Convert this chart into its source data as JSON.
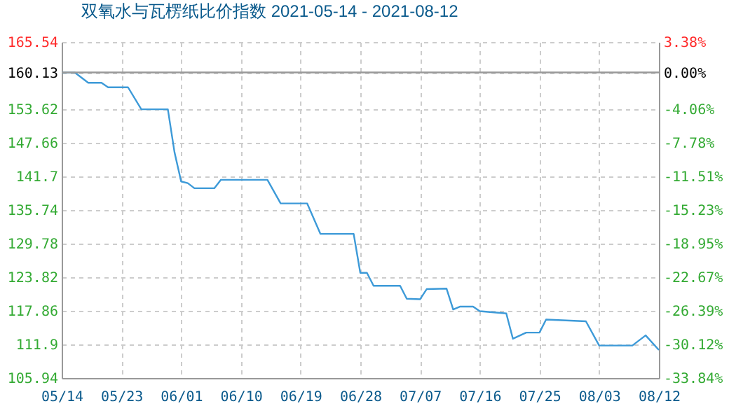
{
  "chart_data": {
    "type": "line",
    "title": "双氧水与瓦楞纸比价指数 2021-05-14 - 2021-08-12",
    "x": [
      "2021-05-14",
      "2021-05-16",
      "2021-05-18",
      "2021-05-20",
      "2021-05-21",
      "2021-05-24",
      "2021-05-26",
      "2021-05-30",
      "2021-05-31",
      "2021-06-01",
      "2021-06-02",
      "2021-06-03",
      "2021-06-06",
      "2021-06-07",
      "2021-06-14",
      "2021-06-16",
      "2021-06-20",
      "2021-06-22",
      "2021-06-27",
      "2021-06-28",
      "2021-06-29",
      "2021-06-30",
      "2021-07-04",
      "2021-07-05",
      "2021-07-07",
      "2021-07-08",
      "2021-07-11",
      "2021-07-12",
      "2021-07-13",
      "2021-07-15",
      "2021-07-16",
      "2021-07-20",
      "2021-07-21",
      "2021-07-23",
      "2021-07-25",
      "2021-07-26",
      "2021-08-01",
      "2021-08-03",
      "2021-08-08",
      "2021-08-10",
      "2021-08-12"
    ],
    "series": [
      {
        "color": "#3d9ad8",
        "values": [
          160.1,
          160.1,
          158.3,
          158.3,
          157.5,
          157.5,
          153.6,
          153.6,
          146.0,
          140.8,
          140.5,
          139.6,
          139.6,
          141.1,
          141.1,
          136.9,
          136.9,
          131.5,
          131.5,
          124.6,
          124.6,
          122.3,
          122.3,
          120.0,
          119.9,
          121.7,
          121.8,
          118.1,
          118.6,
          118.6,
          117.8,
          117.4,
          112.9,
          114.0,
          114.0,
          116.3,
          116.0,
          111.7,
          111.7,
          113.5,
          110.9
        ]
      }
    ],
    "xlim": [
      "2021-05-14",
      "2021-08-12"
    ],
    "xticks": [
      {
        "value": "2021-05-14",
        "label": "05/14"
      },
      {
        "value": "2021-05-23",
        "label": "05/23"
      },
      {
        "value": "2021-06-01",
        "label": "06/01"
      },
      {
        "value": "2021-06-10",
        "label": "06/10"
      },
      {
        "value": "2021-06-19",
        "label": "06/19"
      },
      {
        "value": "2021-06-28",
        "label": "06/28"
      },
      {
        "value": "2021-07-07",
        "label": "07/07"
      },
      {
        "value": "2021-07-16",
        "label": "07/16"
      },
      {
        "value": "2021-07-25",
        "label": "07/25"
      },
      {
        "value": "2021-08-03",
        "label": "08/03"
      },
      {
        "value": "2021-08-12",
        "label": "08/12"
      }
    ],
    "ylim": [
      105.94,
      165.54
    ],
    "yticks": [
      105.94,
      111.9,
      117.86,
      123.82,
      129.78,
      135.74,
      141.7,
      147.66,
      153.62,
      160.13,
      165.54
    ],
    "y2lim": [
      -33.84,
      3.38
    ],
    "y2ticks": [
      {
        "value": -33.84,
        "label": "-33.84%"
      },
      {
        "value": -30.12,
        "label": "-30.12%"
      },
      {
        "value": -26.39,
        "label": "-26.39%"
      },
      {
        "value": -22.67,
        "label": "-22.67%"
      },
      {
        "value": -18.95,
        "label": "-18.95%"
      },
      {
        "value": -15.23,
        "label": "-15.23%"
      },
      {
        "value": -11.51,
        "label": "-11.51%"
      },
      {
        "value": -7.78,
        "label": "-7.78%"
      },
      {
        "value": -4.06,
        "label": "-4.06%"
      },
      {
        "value": 0,
        "label": "0.00%"
      },
      {
        "value": 3.38,
        "label": "3.38%"
      }
    ],
    "ref_lines": [
      {
        "axis": "y",
        "value": 160.13,
        "color": "#999999"
      }
    ],
    "grid": true,
    "marker": "none",
    "line_style": "solid"
  }
}
